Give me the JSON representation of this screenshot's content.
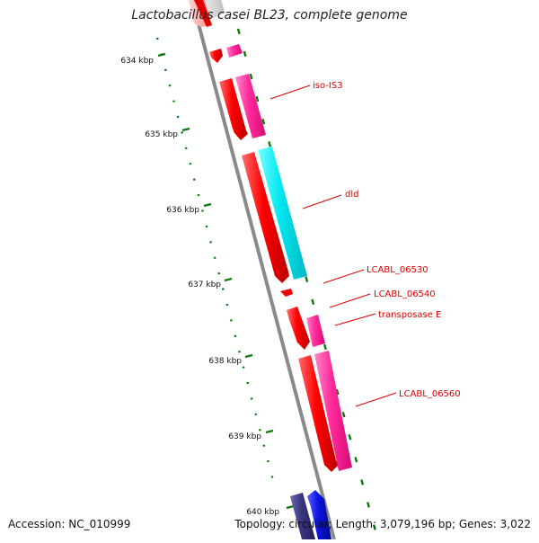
{
  "title": "Lactobacillus casei BL23, complete genome",
  "accession_text": "Accession: NC_010999",
  "topology_text": "Topology: circular; Length: 3,079,196 bp; Genes: 3,022",
  "ticks": [
    "634 kbp",
    "635 kbp",
    "636 kbp",
    "637 kbp",
    "638 kbp",
    "639 kbp",
    "640 kbp"
  ],
  "gene_labels": [
    "iso-IS3",
    "dld",
    "LCABL_06530",
    "LCABL_06540",
    "transposase E",
    "LCABL_06560"
  ],
  "colors": {
    "backbone": "#8a8a8a",
    "tick": "#0a7a0a",
    "gene_red": "#ee0000",
    "gene_pink": "#ff2a9a",
    "gene_cyan": "#00e6ee",
    "gene_blue": "#0a14e0",
    "gene_navy": "#38357e",
    "label": "#dd0000"
  }
}
